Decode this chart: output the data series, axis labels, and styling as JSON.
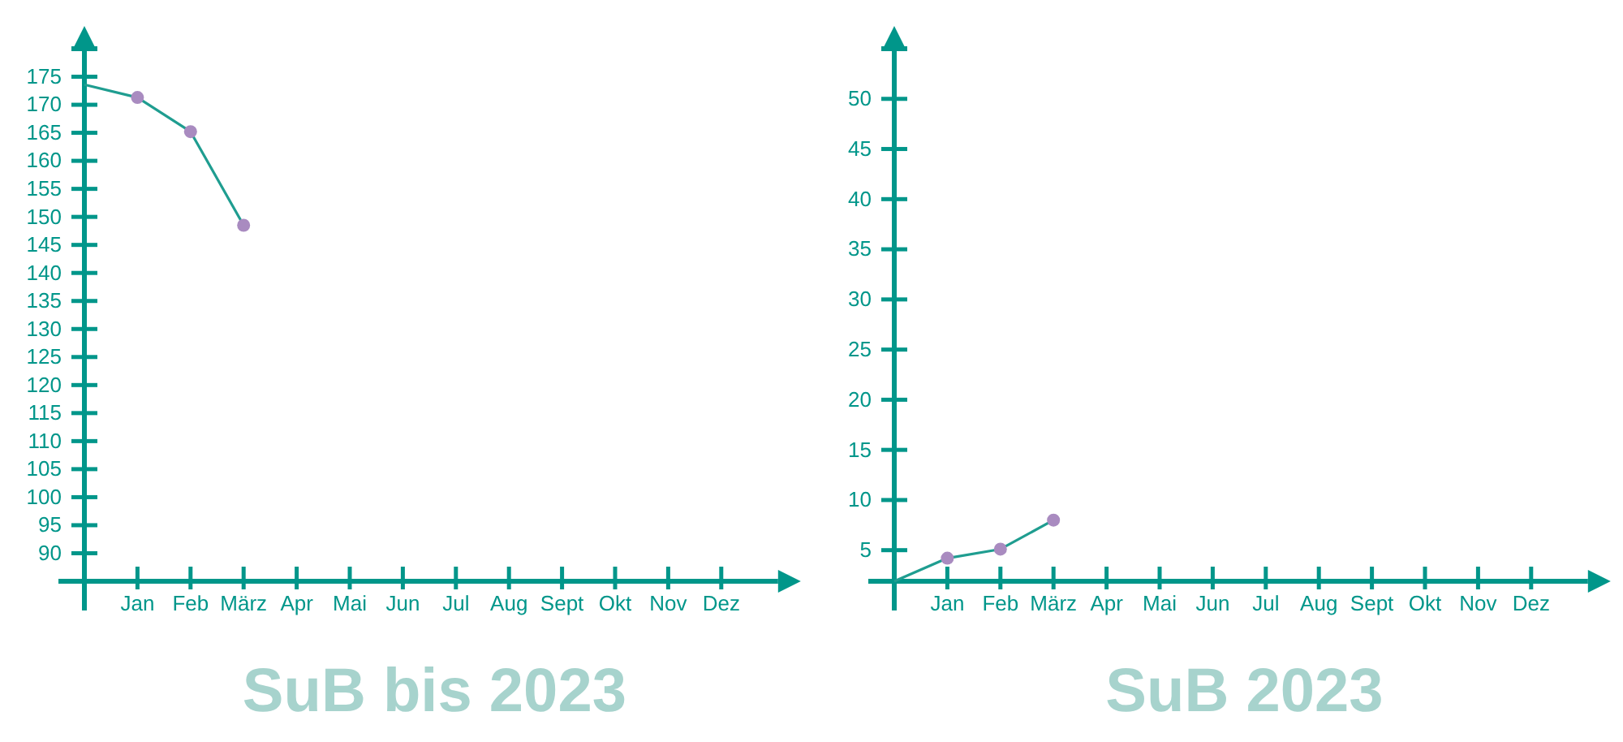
{
  "chart_data": [
    {
      "type": "line",
      "title": "SuB bis 2023",
      "categories": [
        null,
        "Jan",
        "Feb",
        "März",
        "Apr",
        "Mai",
        "Jun",
        "Jul",
        "Aug",
        "Sept",
        "Okt",
        "Nov",
        "Dez"
      ],
      "series": [
        {
          "color": "#1f9d90",
          "colors": [
            null,
            "#a98bc0",
            "#a98bc0",
            "#a98bc0",
            null,
            null,
            null,
            null,
            null,
            null,
            null,
            null,
            null
          ],
          "values": [
            173.6,
            171.3,
            165.2,
            148.5,
            null,
            null,
            null,
            null,
            null,
            null,
            null,
            null,
            null
          ]
        }
      ],
      "ylim": [
        85,
        180
      ],
      "yticks": [
        90,
        95,
        100,
        105,
        110,
        115,
        120,
        125,
        130,
        135,
        140,
        145,
        150,
        155,
        160,
        165,
        170,
        175
      ],
      "marker": "circle"
    },
    {
      "type": "line",
      "title": "SuB 2023",
      "categories": [
        null,
        "Jan",
        "Feb",
        "März",
        "Apr",
        "Mai",
        "Jun",
        "Jul",
        "Aug",
        "Sept",
        "Okt",
        "Nov",
        "Dez"
      ],
      "series": [
        {
          "color": "#1f9d90",
          "colors": [
            null,
            "#a98bc0",
            "#a98bc0",
            "#a98bc0",
            null,
            null,
            null,
            null,
            null,
            null,
            null,
            null,
            null
          ],
          "values": [
            1.9,
            4.2,
            5.1,
            8.0,
            null,
            null,
            null,
            null,
            null,
            null,
            null,
            null,
            null
          ]
        }
      ],
      "ylim": [
        1.9,
        55
      ],
      "yticks": [
        5,
        10,
        15,
        20,
        25,
        30,
        35,
        40,
        45,
        50
      ],
      "marker": "circle"
    }
  ]
}
